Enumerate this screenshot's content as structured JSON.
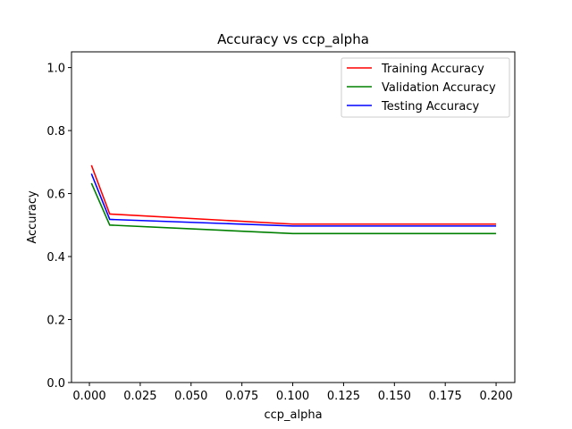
{
  "chart_data": {
    "type": "line",
    "title": "Accuracy vs ccp_alpha",
    "xlabel": "ccp_alpha",
    "ylabel": "Accuracy",
    "xlim": [
      -0.0088,
      0.2092
    ],
    "ylim": [
      0.0,
      1.05
    ],
    "xticks": [
      0.0,
      0.025,
      0.05,
      0.075,
      0.1,
      0.125,
      0.15,
      0.175,
      0.2
    ],
    "xtick_labels": [
      "0.000",
      "0.025",
      "0.050",
      "0.075",
      "0.100",
      "0.125",
      "0.150",
      "0.175",
      "0.200"
    ],
    "yticks": [
      0.0,
      0.2,
      0.4,
      0.6,
      0.8,
      1.0
    ],
    "ytick_labels": [
      "0.0",
      "0.2",
      "0.4",
      "0.6",
      "0.8",
      "1.0"
    ],
    "x": [
      0.001,
      0.01,
      0.1,
      0.2
    ],
    "series": [
      {
        "name": "Training Accuracy",
        "color": "#ff0000",
        "values": [
          0.69,
          0.535,
          0.503,
          0.503
        ]
      },
      {
        "name": "Validation Accuracy",
        "color": "#008000",
        "values": [
          0.633,
          0.5,
          0.473,
          0.473
        ]
      },
      {
        "name": "Testing Accuracy",
        "color": "#0000ff",
        "values": [
          0.663,
          0.518,
          0.497,
          0.497
        ]
      }
    ],
    "grid": false,
    "legend_position": "top-right"
  }
}
